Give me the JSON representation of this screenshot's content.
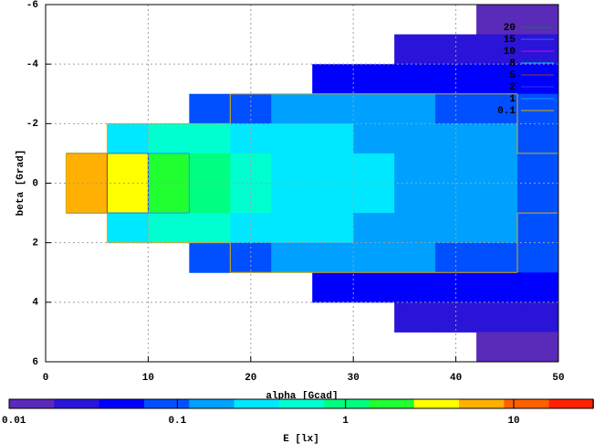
{
  "chart_data": {
    "type": "heatmap",
    "xlabel": "alpha [Gcad]",
    "ylabel": "beta [Grad]",
    "colorbar_label": "E [lx]",
    "x": [
      4,
      8,
      12,
      16,
      20,
      24,
      28,
      32,
      36,
      40,
      44,
      48
    ],
    "y": [
      -5.5,
      -4.5,
      -3.5,
      -2.5,
      -1.5,
      -0.5,
      0.5,
      1.5,
      2.5,
      3.5,
      4.5,
      5.5
    ],
    "z": [
      [
        null,
        null,
        null,
        null,
        null,
        null,
        null,
        null,
        null,
        null,
        0.015,
        0.015
      ],
      [
        null,
        null,
        null,
        null,
        null,
        null,
        null,
        null,
        0.02,
        0.025,
        0.03,
        0.03
      ],
      [
        null,
        null,
        null,
        null,
        null,
        null,
        0.04,
        0.05,
        0.06,
        0.06,
        0.06,
        0.05
      ],
      [
        null,
        null,
        null,
        0.08,
        0.1,
        0.12,
        0.13,
        0.13,
        0.12,
        0.11,
        0.1,
        0.08
      ],
      [
        null,
        0.4,
        0.6,
        0.45,
        0.35,
        0.28,
        0.25,
        0.21,
        0.18,
        0.15,
        0.13,
        0.095
      ],
      [
        8,
        4,
        1.5,
        0.8,
        0.5,
        0.35,
        0.3,
        0.25,
        0.2,
        0.17,
        0.14,
        0.1
      ],
      [
        8,
        4,
        1.5,
        0.8,
        0.5,
        0.35,
        0.3,
        0.25,
        0.2,
        0.17,
        0.14,
        0.1
      ],
      [
        null,
        0.4,
        0.6,
        0.45,
        0.35,
        0.28,
        0.25,
        0.21,
        0.18,
        0.15,
        0.13,
        0.095
      ],
      [
        null,
        null,
        null,
        0.08,
        0.1,
        0.12,
        0.13,
        0.13,
        0.12,
        0.11,
        0.1,
        0.08
      ],
      [
        null,
        null,
        null,
        null,
        null,
        null,
        0.04,
        0.05,
        0.06,
        0.06,
        0.06,
        0.05
      ],
      [
        null,
        null,
        null,
        null,
        null,
        null,
        null,
        null,
        0.02,
        0.025,
        0.03,
        0.03
      ],
      [
        null,
        null,
        null,
        null,
        null,
        null,
        null,
        null,
        null,
        null,
        0.015,
        0.015
      ]
    ],
    "xlim": [
      0,
      50
    ],
    "xticks": [
      0,
      10,
      20,
      30,
      40,
      50
    ],
    "ylim": [
      -6,
      6
    ],
    "yticks": [
      -6,
      -4,
      -2,
      0,
      2,
      4,
      6
    ],
    "cblim": [
      0.01,
      30
    ],
    "cbticks": [
      0.01,
      0.1,
      1,
      10
    ],
    "cb_log": true,
    "grid": true,
    "palette": [
      "#5a2ab8",
      "#2a14d8",
      "#0000ff",
      "#0050ff",
      "#00a0ff",
      "#00e8ff",
      "#00ffd0",
      "#00ff80",
      "#20ff30",
      "#ffff00",
      "#ffb000",
      "#ff6000",
      "#ff2000"
    ],
    "contours": [
      {
        "name": "20",
        "level": 20,
        "color": "#008040"
      },
      {
        "name": "15",
        "level": 15,
        "color": "#4060ff"
      },
      {
        "name": "10",
        "level": 10,
        "color": "#c000ff"
      },
      {
        "name": "8",
        "level": 8,
        "color": "#00d0d0"
      },
      {
        "name": "5",
        "level": 5,
        "color": "#a04020"
      },
      {
        "name": "2",
        "level": 2,
        "color": "#3030ff"
      },
      {
        "name": "1",
        "level": 1,
        "color": "#2090ff"
      },
      {
        "name": "0.1",
        "level": 0.1,
        "color": "#e0b000"
      }
    ]
  }
}
